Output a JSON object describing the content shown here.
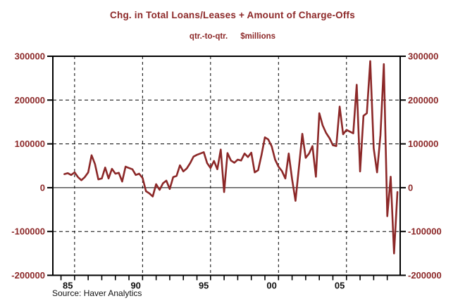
{
  "header": {
    "title": "Chg. in Total Loans/Leases + Amount of Charge-Offs",
    "subtitle_frequency": "qtr.-to-qtr.",
    "subtitle_units": "$millions"
  },
  "footer": {
    "source": "Source: Haver Analytics"
  },
  "colors": {
    "maroon": "#8C2828",
    "line": "#8C2828",
    "axis": "#000000",
    "x_label": "#111111",
    "background": "#ffffff"
  },
  "chart_data": {
    "type": "line",
    "title": "Chg. in Total Loans/Leases + Amount of Charge-Offs",
    "subtitle": "qtr.-to-qtr.  $millions",
    "xlabel": "",
    "ylabel": "$millions",
    "ylim": [
      -200000,
      300000
    ],
    "xlim_years": [
      1984.4,
      2009.95
    ],
    "grid": "dashed horizontal at ±100000/200000, solid zero line, dashed vertical every 5 years",
    "legend": "none",
    "y_ticks": [
      300000,
      200000,
      100000,
      0,
      -100000,
      -200000
    ],
    "y_gridlines_dashed": [
      200000,
      100000,
      -100000
    ],
    "y_gridlines_solid": [
      0
    ],
    "x_gridline_years": [
      1986,
      1991,
      1996,
      2001,
      2006
    ],
    "x_minor_tick_years_range": [
      1985,
      2009
    ],
    "x_tick_labels": [
      {
        "label": "85",
        "year_center": 1985.5
      },
      {
        "label": "90",
        "year_center": 1990.5
      },
      {
        "label": "95",
        "year_center": 1995.5
      },
      {
        "label": "00",
        "year_center": 2000.5
      },
      {
        "label": "05",
        "year_center": 2005.5
      }
    ],
    "series": [
      {
        "name": "Chg. in Total Loans/Leases + Amount of Charge-Offs ($millions, qtr.-to-qtr.)",
        "start": "1985Q1",
        "end": "2009Q3",
        "frequency": "quarterly",
        "values": [
          31000,
          33000,
          29000,
          35000,
          24000,
          17000,
          24000,
          35000,
          74000,
          54000,
          19000,
          21000,
          46000,
          21000,
          43000,
          32000,
          34000,
          14000,
          48000,
          45000,
          42000,
          29000,
          32000,
          22000,
          -8000,
          -13000,
          -20000,
          8000,
          -5000,
          10000,
          16000,
          -3000,
          24000,
          27000,
          51000,
          37000,
          44000,
          56000,
          71000,
          75000,
          78000,
          81000,
          56000,
          45000,
          61000,
          42000,
          87000,
          -10000,
          79000,
          62000,
          57000,
          64000,
          62000,
          78000,
          70000,
          80000,
          35000,
          40000,
          75000,
          115000,
          110000,
          94000,
          64000,
          48000,
          38000,
          21000,
          78000,
          19000,
          -30000,
          45000,
          123000,
          68000,
          78000,
          95000,
          25000,
          170000,
          142000,
          125000,
          113000,
          97000,
          95000,
          185000,
          122000,
          132000,
          128000,
          124000,
          235000,
          37000,
          164000,
          170000,
          289000,
          90000,
          35000,
          120000,
          282000,
          -65000,
          25000,
          -150000,
          -10000
        ]
      }
    ]
  }
}
